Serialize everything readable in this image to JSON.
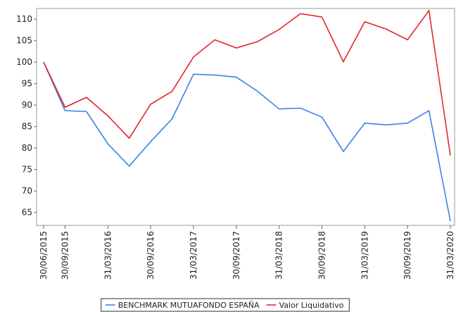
{
  "chart_data": {
    "type": "line",
    "categories": [
      "30/06/2015",
      "30/09/2015",
      null,
      "31/03/2016",
      null,
      "30/09/2016",
      null,
      "31/03/2017",
      null,
      "30/09/2017",
      null,
      "31/03/2018",
      null,
      "30/09/2018",
      null,
      "31/03/2019",
      null,
      "30/09/2019",
      null,
      "31/03/2020"
    ],
    "series": [
      {
        "name": "BENCHMARK MUTUAFONDO ESPAÑA",
        "color": "#3b82e8",
        "values": [
          100,
          88.7,
          88.5,
          81,
          75.8,
          81.5,
          86.8,
          97.2,
          97,
          96.5,
          93.2,
          89.1,
          89.3,
          87.2,
          79.2,
          85.8,
          85.4,
          85.8,
          88.7,
          63
        ]
      },
      {
        "name": "Valor Liquidativo",
        "color": "#e0262e",
        "values": [
          100,
          89.5,
          91.8,
          87.5,
          82.3,
          90.2,
          93.2,
          101.2,
          105.2,
          103.3,
          104.8,
          107.6,
          111.3,
          110.5,
          100.1,
          109.4,
          107.7,
          105.2,
          112,
          78.3
        ]
      }
    ],
    "ylim": [
      62,
      112.5
    ],
    "yticks": [
      65,
      70,
      75,
      80,
      85,
      90,
      95,
      100,
      105,
      110
    ],
    "legend": "bottom"
  }
}
